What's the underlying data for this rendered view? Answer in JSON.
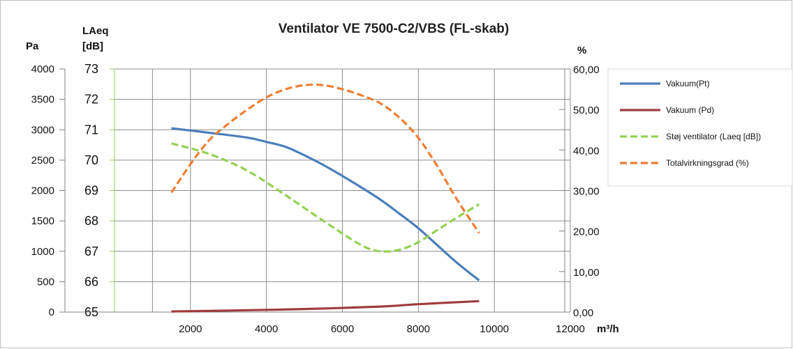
{
  "chart_data": {
    "type": "line",
    "title": "Ventilator VE 7500-C2/VBS (FL-skab)",
    "x_unit": "m³/h",
    "xlim": [
      0,
      12000
    ],
    "x_ticks": [
      "2000",
      "4000",
      "6000",
      "8000",
      "10000",
      "12000"
    ],
    "x_tick_values": [
      2000,
      4000,
      6000,
      8000,
      10000,
      12000
    ],
    "y_pa": {
      "unit": "Pa",
      "range": [
        0,
        4000
      ],
      "ticks": [
        "0",
        "500",
        "1000",
        "1500",
        "2000",
        "2500",
        "3000",
        "3500",
        "4000"
      ]
    },
    "y_laeq": {
      "unit_line1": "LAeq",
      "unit_line2": "[dB]",
      "range": [
        65,
        73
      ],
      "ticks": [
        "65",
        "66",
        "67",
        "68",
        "69",
        "70",
        "71",
        "72",
        "73"
      ]
    },
    "y_pct": {
      "unit": "%",
      "range": [
        0,
        60
      ],
      "ticks": [
        "0,00",
        "10,00",
        "20,00",
        "30,00",
        "40,00",
        "50,00",
        "60,00"
      ]
    },
    "grid": true,
    "legend_position": "right",
    "series": [
      {
        "name": "Vakuum(Pt)",
        "axis": "y_pa",
        "color": "#4a7ebb",
        "style": "solid",
        "x": [
          1500,
          2500,
          3500,
          4000,
          4500,
          5000,
          5500,
          6000,
          6500,
          7000,
          7500,
          8000,
          8500,
          9000,
          9600
        ],
        "y": [
          3025,
          2950,
          2870,
          2800,
          2720,
          2580,
          2420,
          2240,
          2050,
          1850,
          1620,
          1380,
          1100,
          820,
          520
        ]
      },
      {
        "name": "Vakuum (Pd)",
        "axis": "y_pa",
        "color": "#a03c3c",
        "style": "solid",
        "x": [
          1500,
          3000,
          5000,
          7000,
          8000,
          9600
        ],
        "y": [
          10,
          25,
          50,
          90,
          130,
          180
        ]
      },
      {
        "name": "Støj ventilator (Laeq [dB])",
        "axis": "y_laeq",
        "color": "#92d050",
        "style": "dashed",
        "x": [
          1500,
          2500,
          3500,
          4500,
          5500,
          6500,
          7000,
          7500,
          8000,
          8500,
          9000,
          9600
        ],
        "y": [
          70.55,
          70.2,
          69.65,
          68.85,
          68.0,
          67.2,
          67.0,
          67.05,
          67.3,
          67.7,
          68.1,
          68.55
        ]
      },
      {
        "name": "Totalvirkningsgrad (%)",
        "axis": "y_pct",
        "color": "#ed7d31",
        "style": "dashed",
        "x": [
          1500,
          2000,
          2500,
          3000,
          3500,
          4000,
          4500,
          5000,
          5500,
          6000,
          6500,
          7000,
          7500,
          8000,
          8500,
          9000,
          9600
        ],
        "y": [
          29.5,
          36.5,
          42.5,
          46.5,
          50.0,
          53.0,
          55.0,
          56.0,
          56.0,
          55.0,
          53.5,
          51.5,
          48.0,
          43.0,
          36.0,
          28.0,
          19.5
        ]
      }
    ]
  }
}
